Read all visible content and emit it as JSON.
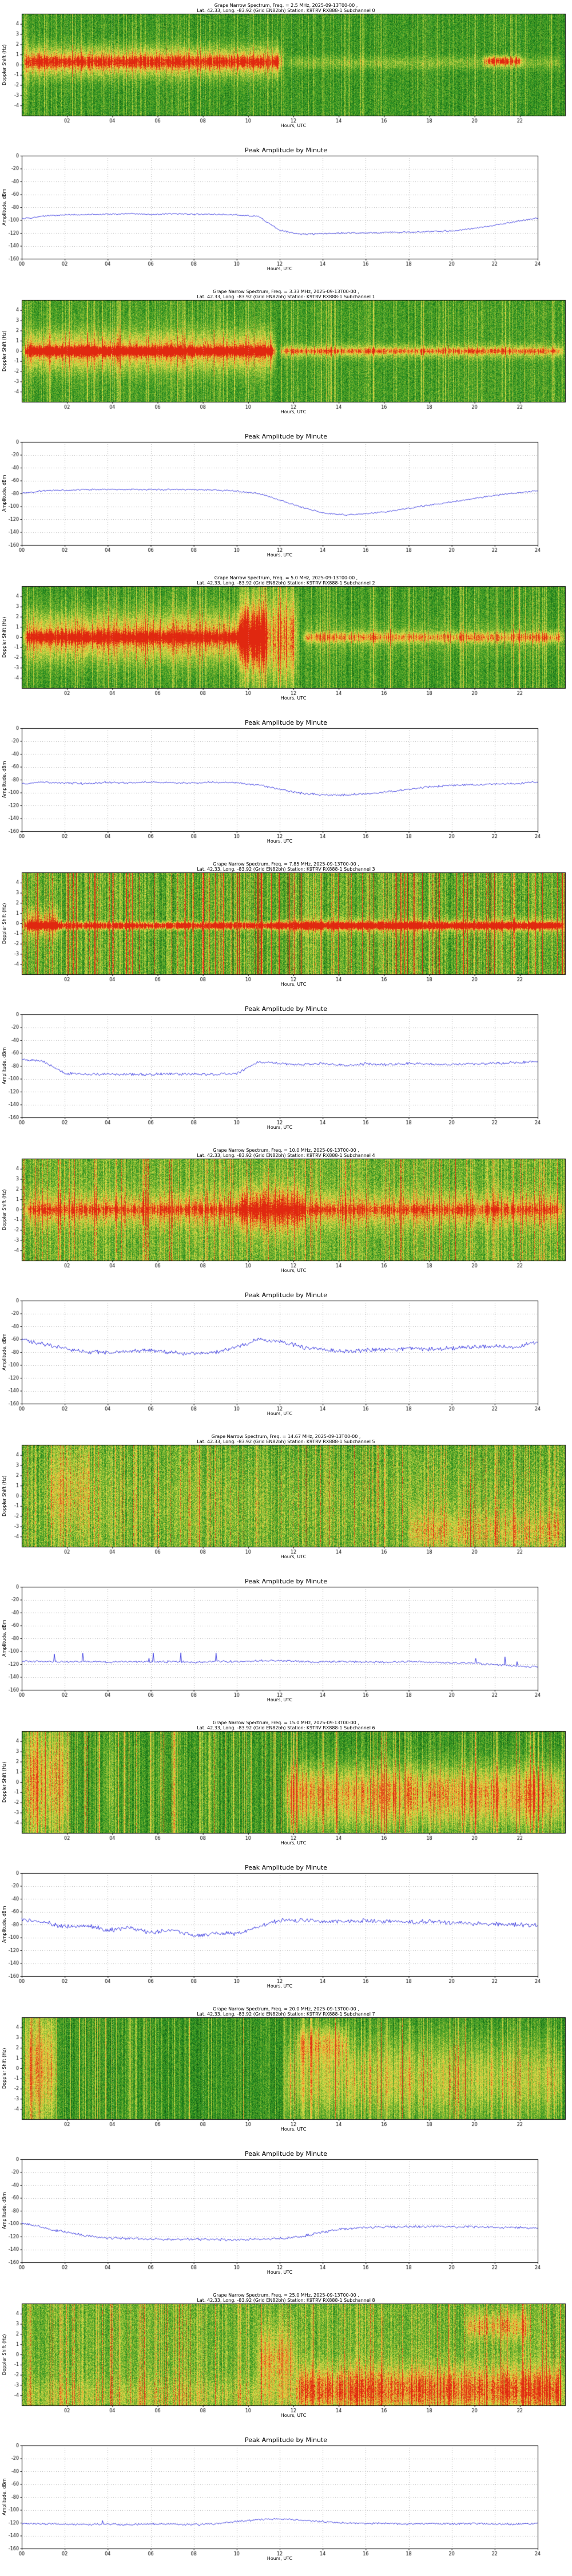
{
  "page": {
    "background": "#ffffff"
  },
  "colormap": [
    "#001f00",
    "#0f5a10",
    "#228b22",
    "#57a627",
    "#9cc43a",
    "#e0e04e",
    "#f0a832",
    "#e02810"
  ],
  "axes": {
    "spectrum": {
      "xlabel": "Hours, UTC",
      "ylabel": "Doppler Shift (Hz)",
      "xlim": [
        0,
        24
      ],
      "ylim": [
        -5,
        5
      ],
      "xticks": [
        2,
        4,
        6,
        8,
        10,
        12,
        14,
        16,
        18,
        20,
        22
      ],
      "xtick_labels": [
        "02",
        "04",
        "06",
        "08",
        "10",
        "12",
        "14",
        "16",
        "18",
        "20",
        "22"
      ],
      "yticks": [
        4,
        3,
        2,
        1,
        0,
        -1,
        -2,
        -3,
        -4
      ],
      "ytick_labels": [
        "4",
        "3",
        "2",
        "1",
        "0",
        "-1",
        "-2",
        "-3",
        "-4"
      ],
      "grid": "vertical-dotted"
    },
    "amplitude": {
      "title": "Peak Amplitude by Minute",
      "xlabel": "Hours, UTC",
      "ylabel": "Amplitude, dBm",
      "xlim": [
        0,
        24
      ],
      "ylim": [
        -160,
        0
      ],
      "xticks": [
        0,
        2,
        4,
        6,
        8,
        10,
        12,
        14,
        16,
        18,
        20,
        22,
        24
      ],
      "xtick_labels": [
        "00",
        "02",
        "04",
        "06",
        "08",
        "10",
        "12",
        "14",
        "16",
        "18",
        "20",
        "22",
        "24"
      ],
      "yticks": [
        0,
        -20,
        -40,
        -60,
        -80,
        -100,
        -120,
        -140,
        -160
      ],
      "ytick_labels": [
        "0",
        "-20",
        "-40",
        "-60",
        "-80",
        "-100",
        "-120",
        "-140",
        "-160"
      ],
      "grid": "dotted"
    }
  },
  "chart_data": [
    {
      "subchannel": 0,
      "freq_mhz": "2.5",
      "spectrum": {
        "type": "heatmap",
        "title_line1": "Grape Narrow Spectrum, Freq. = 2.5 MHz, 2025-09-13T00-00 ,",
        "title_line2": "Lat. 42.33, Long. -83.92 (Grid EN82bh) Station: K9TRV RX888-1 Subchannel 0",
        "pattern": {
          "seed": 11,
          "base": 0.33,
          "noise": 0.15,
          "streak": 0.18,
          "colvar": 0.08,
          "bands": [
            {
              "t0": 0,
              "t1": 0.4,
              "y": 0,
              "hw": 5,
              "amp": 0.35
            },
            {
              "t0": 0,
              "t1": 11.6,
              "y": 0.3,
              "hw": 1.0,
              "amp": 0.45
            },
            {
              "t0": 0,
              "t1": 11.6,
              "y": 0.3,
              "hw": 0.35,
              "amp": 0.3
            },
            {
              "t0": 11.6,
              "t1": 24,
              "y": 0.2,
              "hw": 0.45,
              "amp": 0.16
            },
            {
              "t0": 20.3,
              "t1": 22.2,
              "y": 0.4,
              "hw": 0.3,
              "amp": 0.5
            }
          ]
        }
      },
      "amplitude": {
        "type": "line",
        "x_hours_step": 1,
        "values_dbm": [
          -98,
          -94,
          -92,
          -91,
          -91,
          -90,
          -91,
          -90,
          -91,
          -91,
          -92,
          -94,
          -116,
          -122,
          -121,
          -120,
          -120,
          -119,
          -119,
          -118,
          -117,
          -113,
          -108,
          -102,
          -97
        ],
        "noise_db": 1.5,
        "spike_prob": 0,
        "spike_db": 0,
        "line_color": "#2222dd"
      }
    },
    {
      "subchannel": 1,
      "freq_mhz": "3.33",
      "spectrum": {
        "type": "heatmap",
        "title_line1": "Grape Narrow Spectrum, Freq. = 3.33 MHz, 2025-09-13T00-00 ,",
        "title_line2": "Lat. 42.33, Long. -83.92 (Grid EN82bh) Station: K9TRV RX888-1 Subchannel 1",
        "pattern": {
          "seed": 22,
          "base": 0.36,
          "noise": 0.15,
          "streak": 0.2,
          "colvar": 0.08,
          "bands": [
            {
              "t0": 0,
              "t1": 11.3,
              "y": 0,
              "hw": 1.3,
              "amp": 0.42
            },
            {
              "t0": 0,
              "t1": 11.3,
              "y": 0,
              "hw": 0.28,
              "amp": 0.6
            },
            {
              "t0": 11.3,
              "t1": 24,
              "y": 0,
              "hw": 0.45,
              "amp": 0.3
            },
            {
              "t0": 11.3,
              "t1": 24,
              "y": 0,
              "hw": 0.18,
              "amp": 0.25
            }
          ]
        }
      },
      "amplitude": {
        "type": "line",
        "x_hours_step": 1,
        "values_dbm": [
          -80,
          -76,
          -75,
          -74,
          -74,
          -74,
          -74,
          -74,
          -74,
          -75,
          -76,
          -80,
          -90,
          -101,
          -110,
          -113,
          -112,
          -108,
          -103,
          -98,
          -93,
          -88,
          -83,
          -79,
          -76
        ],
        "noise_db": 1.5,
        "spike_prob": 0,
        "spike_db": 0,
        "line_color": "#2222dd"
      }
    },
    {
      "subchannel": 2,
      "freq_mhz": "5.0",
      "spectrum": {
        "type": "heatmap",
        "title_line1": "Grape Narrow Spectrum, Freq. = 5.0 MHz, 2025-09-13T00-00 ,",
        "title_line2": "Lat. 42.33, Long. -83.92 (Grid EN82bh) Station: K9TRV RX888-1 Subchannel 2",
        "pattern": {
          "seed": 33,
          "base": 0.34,
          "noise": 0.15,
          "streak": 0.22,
          "colvar": 0.1,
          "bands": [
            {
              "t0": 0,
              "t1": 11,
              "y": 0,
              "hw": 1.6,
              "amp": 0.45
            },
            {
              "t0": 0,
              "t1": 10.5,
              "y": 0,
              "hw": 0.35,
              "amp": 0.45
            },
            {
              "t0": 9.5,
              "t1": 12.3,
              "y": 0,
              "hw": 3.0,
              "amp": 0.45
            },
            {
              "t0": 12.3,
              "t1": 24,
              "y": 0,
              "hw": 0.35,
              "amp": 0.38
            },
            {
              "t0": 12.3,
              "t1": 24,
              "y": 0,
              "hw": 1.2,
              "amp": 0.1
            }
          ]
        }
      },
      "amplitude": {
        "type": "line",
        "x_hours_step": 1,
        "values_dbm": [
          -87,
          -84,
          -85,
          -86,
          -84,
          -85,
          -84,
          -85,
          -85,
          -84,
          -85,
          -88,
          -95,
          -101,
          -104,
          -104,
          -102,
          -99,
          -95,
          -91,
          -89,
          -88,
          -87,
          -86,
          -84
        ],
        "noise_db": 2,
        "spike_prob": 0,
        "spike_db": 0,
        "line_color": "#2222dd"
      }
    },
    {
      "subchannel": 3,
      "freq_mhz": "7.85",
      "spectrum": {
        "type": "heatmap",
        "title_line1": "Grape Narrow Spectrum, Freq. = 7.85 MHz, 2025-09-13T00-00 ,",
        "title_line2": "Lat. 42.33, Long. -83.92 (Grid EN82bh) Station: K9TRV RX888-1 Subchannel 3",
        "pattern": {
          "seed": 44,
          "base": 0.42,
          "noise": 0.18,
          "streak": 0.5,
          "colvar": 0.22,
          "bands": [
            {
              "t0": 0,
              "t1": 24,
              "y": -0.2,
              "hw": 0.22,
              "amp": 0.8
            },
            {
              "t0": 0,
              "t1": 1.8,
              "y": 0,
              "hw": 0.9,
              "amp": 0.35
            },
            {
              "t0": 11,
              "t1": 24,
              "y": -0.2,
              "hw": 0.55,
              "amp": 0.22
            }
          ]
        }
      },
      "amplitude": {
        "type": "line",
        "x_hours_step": 1,
        "values_dbm": [
          -70,
          -73,
          -92,
          -93,
          -93,
          -93,
          -93,
          -92,
          -93,
          -93,
          -92,
          -74,
          -76,
          -78,
          -76,
          -79,
          -77,
          -78,
          -76,
          -77,
          -78,
          -77,
          -76,
          -75,
          -73
        ],
        "noise_db": 2.5,
        "spike_prob": 0,
        "spike_db": 0,
        "line_color": "#2222dd"
      }
    },
    {
      "subchannel": 4,
      "freq_mhz": "10.0",
      "spectrum": {
        "type": "heatmap",
        "title_line1": "Grape Narrow Spectrum, Freq. = 10.0 MHz, 2025-09-13T00-00 ,",
        "title_line2": "Lat. 42.33, Long. -83.92 (Grid EN82bh) Station: K9TRV RX888-1 Subchannel 4",
        "pattern": {
          "seed": 55,
          "base": 0.45,
          "noise": 0.18,
          "streak": 0.3,
          "colvar": 0.15,
          "bands": [
            {
              "t0": 0,
              "t1": 24,
              "y": 0,
              "hw": 1.1,
              "amp": 0.32
            },
            {
              "t0": 9.5,
              "t1": 12.5,
              "y": 0,
              "hw": 1.8,
              "amp": 0.28
            },
            {
              "t0": 0,
              "t1": 24,
              "y": 0,
              "hw": 0.3,
              "amp": 0.22
            }
          ]
        }
      },
      "amplitude": {
        "type": "line",
        "x_hours_step": 1,
        "values_dbm": [
          -60,
          -68,
          -74,
          -79,
          -81,
          -79,
          -77,
          -81,
          -83,
          -80,
          -72,
          -61,
          -63,
          -72,
          -76,
          -79,
          -77,
          -76,
          -74,
          -76,
          -74,
          -72,
          -71,
          -73,
          -63
        ],
        "noise_db": 4,
        "spike_prob": 0,
        "spike_db": 0,
        "line_color": "#2222dd"
      }
    },
    {
      "subchannel": 5,
      "freq_mhz": "14.67",
      "spectrum": {
        "type": "heatmap",
        "title_line1": "Grape Narrow Spectrum, Freq. = 14.67 MHz, 2025-09-13T00-00 ,",
        "title_line2": "Lat. 42.33, Long. -83.92 (Grid EN82bh) Station: K9TRV RX888-1 Subchannel 5",
        "pattern": {
          "seed": 66,
          "base": 0.4,
          "noise": 0.2,
          "streak": 0.28,
          "colvar": 0.18,
          "bands": [
            {
              "t0": 17,
              "t1": 24,
              "y": -3.5,
              "hw": 1.4,
              "amp": 0.22
            },
            {
              "t0": 1,
              "t1": 3.2,
              "y": 1,
              "hw": 3,
              "amp": 0.15
            },
            {
              "t0": 0,
              "t1": 24,
              "y": -1,
              "hw": 3.5,
              "amp": 0.08
            }
          ]
        }
      },
      "amplitude": {
        "type": "line",
        "x_hours_step": 1,
        "values_dbm": [
          -116,
          -116,
          -117,
          -116,
          -117,
          -116,
          -117,
          -116,
          -117,
          -116,
          -116,
          -115,
          -115,
          -116,
          -117,
          -116,
          -117,
          -117,
          -116,
          -117,
          -118,
          -119,
          -121,
          -123,
          -124
        ],
        "noise_db": 2,
        "spike_prob": 0.012,
        "spike_db": 10,
        "line_color": "#2222dd"
      }
    },
    {
      "subchannel": 6,
      "freq_mhz": "15.0",
      "spectrum": {
        "type": "heatmap",
        "title_line1": "Grape Narrow Spectrum, Freq. = 15.0 MHz, 2025-09-13T00-00 ,",
        "title_line2": "Lat. 42.33, Long. -83.92 (Grid EN82bh) Station: K9TRV RX888-1 Subchannel 6",
        "pattern": {
          "seed": 77,
          "base": 0.33,
          "noise": 0.16,
          "streak": 0.3,
          "colvar": 0.15,
          "bands": [
            {
              "t0": 0,
              "t1": 2.2,
              "y": 0,
              "hw": 4.5,
              "amp": 0.4
            },
            {
              "t0": 11.5,
              "t1": 24,
              "y": -0.5,
              "hw": 1.6,
              "amp": 0.35
            },
            {
              "t0": 11.5,
              "t1": 24,
              "y": -3,
              "hw": 1.6,
              "amp": 0.22
            },
            {
              "t0": 3.5,
              "t1": 4.2,
              "y": 0,
              "hw": 4,
              "amp": 0.18
            },
            {
              "t0": 5.8,
              "t1": 6.4,
              "y": 0,
              "hw": 4,
              "amp": 0.16
            },
            {
              "t0": 8.0,
              "t1": 8.5,
              "y": 0,
              "hw": 4,
              "amp": 0.16
            },
            {
              "t0": 9.8,
              "t1": 10.3,
              "y": 0,
              "hw": 4,
              "amp": 0.16
            }
          ]
        }
      },
      "amplitude": {
        "type": "line",
        "x_hours_step": 1,
        "values_dbm": [
          -72,
          -76,
          -84,
          -81,
          -89,
          -85,
          -93,
          -88,
          -97,
          -93,
          -95,
          -84,
          -73,
          -74,
          -75,
          -75,
          -74,
          -75,
          -76,
          -75,
          -77,
          -78,
          -79,
          -80,
          -81
        ],
        "noise_db": 4,
        "spike_prob": 0,
        "spike_db": 0,
        "line_color": "#2222dd"
      }
    },
    {
      "subchannel": 7,
      "freq_mhz": "20.0",
      "spectrum": {
        "type": "heatmap",
        "title_line1": "Grape Narrow Spectrum, Freq. = 20.0 MHz, 2025-09-13T00-00 ,",
        "title_line2": "Lat. 42.33, Long. -83.92 (Grid EN82bh) Station: K9TRV RX888-1 Subchannel 7",
        "pattern": {
          "seed": 88,
          "base": 0.31,
          "noise": 0.15,
          "streak": 0.26,
          "colvar": 0.12,
          "bands": [
            {
              "t0": 0,
              "t1": 1.6,
              "y": 0,
              "hw": 4.5,
              "amp": 0.45
            },
            {
              "t0": 11.5,
              "t1": 24,
              "y": -1,
              "hw": 2.8,
              "amp": 0.3
            },
            {
              "t0": 12,
              "t1": 14.5,
              "y": 2.5,
              "hw": 1.2,
              "amp": 0.28
            }
          ]
        }
      },
      "amplitude": {
        "type": "line",
        "x_hours_step": 1,
        "values_dbm": [
          -98,
          -106,
          -113,
          -119,
          -122,
          -123,
          -124,
          -124,
          -124,
          -125,
          -125,
          -124,
          -123,
          -120,
          -113,
          -108,
          -106,
          -105,
          -105,
          -104,
          -105,
          -105,
          -106,
          -106,
          -107
        ],
        "noise_db": 2.5,
        "spike_prob": 0,
        "spike_db": 0,
        "line_color": "#2222dd"
      }
    },
    {
      "subchannel": 8,
      "freq_mhz": "25.0",
      "spectrum": {
        "type": "heatmap",
        "title_line1": "Grape Narrow Spectrum, Freq. = 25.0 MHz, 2025-09-13T00-00 ,",
        "title_line2": "Lat. 42.33, Long. -83.92 (Grid EN82bh) Station: K9TRV RX888-1 Subchannel 8",
        "pattern": {
          "seed": 99,
          "base": 0.45,
          "noise": 0.18,
          "streak": 0.3,
          "colvar": 0.16,
          "bands": [
            {
              "t0": 12,
              "t1": 24,
              "y": -3.2,
              "hw": 1.5,
              "amp": 0.35
            },
            {
              "t0": 10.3,
              "t1": 12.2,
              "y": -0.5,
              "hw": 2.2,
              "amp": 0.3
            },
            {
              "t0": 19.5,
              "t1": 22.5,
              "y": 2.8,
              "hw": 0.9,
              "amp": 0.3
            },
            {
              "t0": 0,
              "t1": 24,
              "y": -4,
              "hw": 1.2,
              "amp": 0.12
            }
          ]
        }
      },
      "amplitude": {
        "type": "line",
        "x_hours_step": 1,
        "values_dbm": [
          -121,
          -122,
          -122,
          -123,
          -122,
          -123,
          -122,
          -122,
          -123,
          -122,
          -118,
          -115,
          -114,
          -116,
          -118,
          -120,
          -121,
          -121,
          -122,
          -121,
          -122,
          -121,
          -122,
          -122,
          -121
        ],
        "noise_db": 1.8,
        "spike_prob": 0.008,
        "spike_db": 8,
        "line_color": "#2222dd"
      }
    }
  ]
}
